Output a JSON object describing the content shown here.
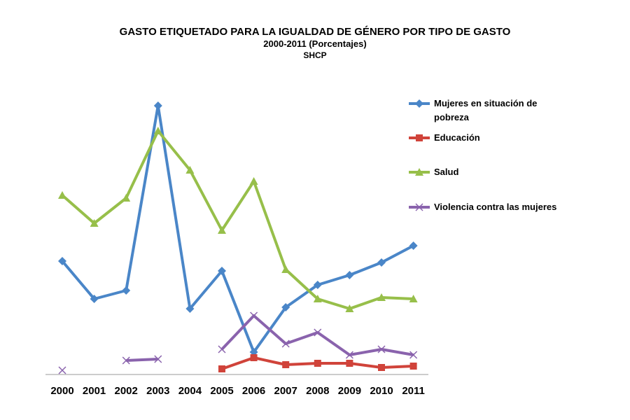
{
  "chart_data": {
    "type": "line",
    "title": "GASTO ETIQUETADO PARA LA IGUALDAD DE GÉNERO POR TIPO DE GASTO",
    "subtitle": "2000-2011 (Porcentajes)",
    "source": "SHCP",
    "xlabel": "",
    "ylabel": "",
    "ylim": [
      0,
      100
    ],
    "grid": false,
    "legend_position": "right",
    "categories": [
      "2000",
      "2001",
      "2002",
      "2003",
      "2004",
      "2005",
      "2006",
      "2007",
      "2008",
      "2009",
      "2010",
      "2011"
    ],
    "series": [
      {
        "name": "Mujeres en situación de pobreza",
        "color": "#4a86c8",
        "marker": "diamond",
        "values": [
          40.5,
          27,
          30,
          96,
          23.5,
          37,
          8,
          24,
          32,
          35.5,
          40,
          46
        ]
      },
      {
        "name": "Educación",
        "color": "#d0433a",
        "marker": "square",
        "values": [
          null,
          null,
          null,
          null,
          null,
          2,
          6,
          3.5,
          4,
          4,
          2.5,
          3
        ]
      },
      {
        "name": "Salud",
        "color": "#97bf4a",
        "marker": "triangle",
        "values": [
          64,
          54,
          63,
          87,
          73,
          51.5,
          69,
          37.5,
          27,
          23.5,
          27.5,
          27
        ]
      },
      {
        "name": "Violencia contra las mujeres",
        "color": "#8a63ad",
        "marker": "x",
        "values": [
          1.5,
          null,
          5,
          5.5,
          null,
          9,
          21,
          11,
          15,
          7,
          9,
          7
        ]
      }
    ]
  }
}
